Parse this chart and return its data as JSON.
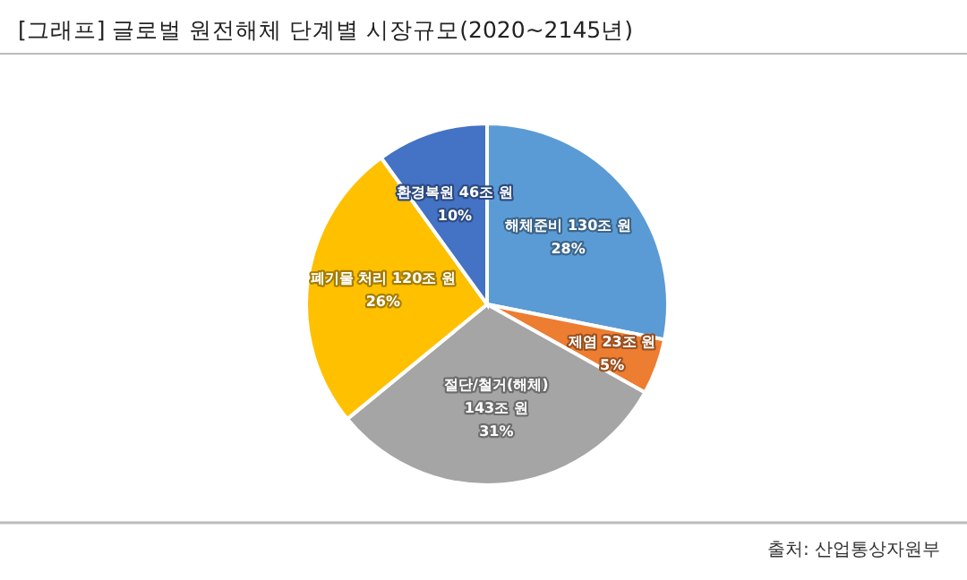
{
  "chart_data": {
    "type": "pie",
    "title": "[그래프] 글로벌 원전해체 단계별 시장규모(2020~2145년)",
    "categories": [
      "해체준비",
      "제염",
      "절단/철거(해체)",
      "폐기물 처리",
      "환경복원"
    ],
    "values": [
      130,
      23,
      143,
      120,
      46
    ],
    "colors": [
      "#5b9bd5",
      "#ed7d31",
      "#a5a5a5",
      "#ffc000",
      "#4472c4"
    ],
    "value_labels": [
      "130조 원\n28%",
      "23조 원\n5%",
      "143조 원\n31%",
      "120조 원\n26%",
      "46조 원\n10%"
    ],
    "annotations": [
      "출처: 산업통상자원부"
    ]
  }
}
